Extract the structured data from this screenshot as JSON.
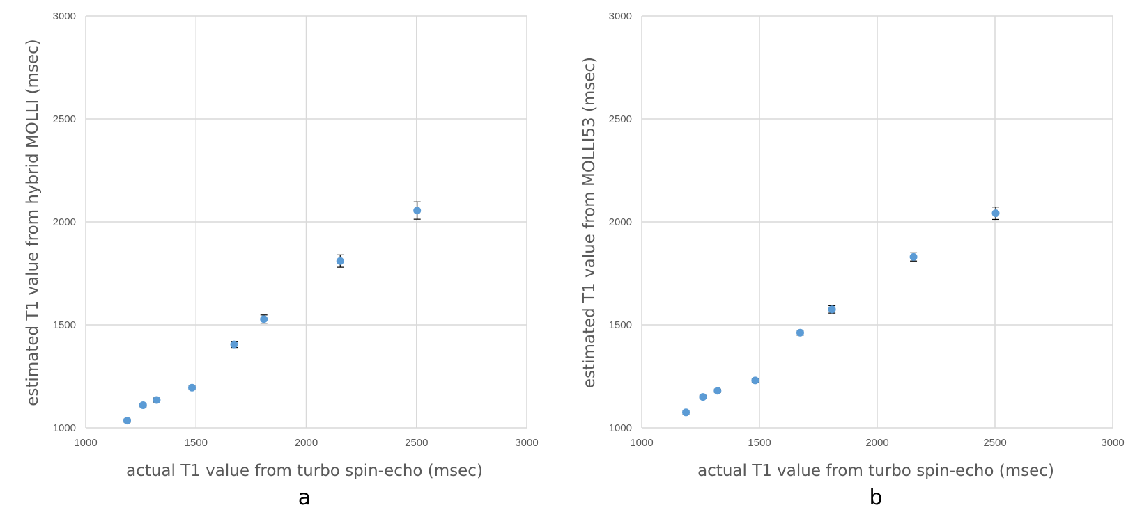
{
  "chart_data": [
    {
      "type": "scatter",
      "panel_label": "a",
      "xlabel": "actual T1 value from turbo spin-echo (msec)",
      "ylabel": "estimated T1 value from hybrid MOLLI (msec)",
      "xlim": [
        1000,
        3000
      ],
      "ylim": [
        1000,
        3000
      ],
      "xticks": [
        "1000",
        "1500",
        "2000",
        "2500",
        "3000"
      ],
      "yticks": [
        "1000",
        "1500",
        "2000",
        "2500",
        "3000"
      ],
      "grid": true,
      "marker_color": "#5b9bd5",
      "points": [
        {
          "x": 1188,
          "y": 1035,
          "err": 8
        },
        {
          "x": 1260,
          "y": 1110,
          "err": 8
        },
        {
          "x": 1322,
          "y": 1135,
          "err": 10
        },
        {
          "x": 1482,
          "y": 1195,
          "err": 8
        },
        {
          "x": 1673,
          "y": 1405,
          "err": 15
        },
        {
          "x": 1808,
          "y": 1528,
          "err": 20
        },
        {
          "x": 2154,
          "y": 1810,
          "err": 30
        },
        {
          "x": 2503,
          "y": 2055,
          "err": 42
        }
      ]
    },
    {
      "type": "scatter",
      "panel_label": "b",
      "xlabel": "actual T1 value from turbo spin-echo  (msec)",
      "ylabel": "estimated T1 value from MOLLI53 (msec)",
      "xlim": [
        1000,
        3000
      ],
      "ylim": [
        1000,
        3000
      ],
      "xticks": [
        "1000",
        "1500",
        "2000",
        "2500",
        "3000"
      ],
      "yticks": [
        "1000",
        "1500",
        "2000",
        "2500",
        "3000"
      ],
      "grid": true,
      "marker_color": "#5b9bd5",
      "points": [
        {
          "x": 1188,
          "y": 1075,
          "err": 8
        },
        {
          "x": 1260,
          "y": 1150,
          "err": 8
        },
        {
          "x": 1322,
          "y": 1180,
          "err": 8
        },
        {
          "x": 1482,
          "y": 1230,
          "err": 8
        },
        {
          "x": 1673,
          "y": 1462,
          "err": 12
        },
        {
          "x": 1808,
          "y": 1575,
          "err": 18
        },
        {
          "x": 2154,
          "y": 1830,
          "err": 20
        },
        {
          "x": 2503,
          "y": 2042,
          "err": 30
        }
      ]
    }
  ]
}
